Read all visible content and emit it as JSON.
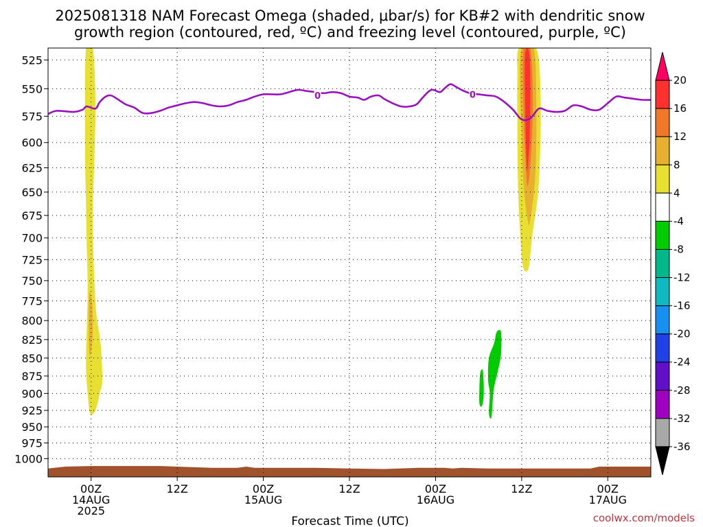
{
  "chart_data": {
    "type": "contour",
    "title_lines": [
      "2025081318 NAM Forecast Omega (shaded, μbar/s) for KB#2 with dendritic snow",
      "growth region (contoured, red, ºC) and freezing level (contoured, purple, ºC)"
    ],
    "xlabel": "Forecast Time (UTC)",
    "credit": "coolwx.com/models",
    "x_range_hours": [
      -5,
      65
    ],
    "x_ticks": [
      {
        "hour": 0,
        "lines": [
          "00Z",
          "14AUG",
          "2025"
        ]
      },
      {
        "hour": 10,
        "lines": [
          "12Z"
        ]
      },
      {
        "hour": 20,
        "lines": [
          "00Z",
          "15AUG"
        ]
      },
      {
        "hour": 30,
        "lines": [
          "12Z"
        ]
      },
      {
        "hour": 40,
        "lines": [
          "00Z",
          "16AUG"
        ]
      },
      {
        "hour": 50,
        "lines": [
          "12Z"
        ]
      },
      {
        "hour": 60,
        "lines": [
          "00Z",
          "17AUG"
        ]
      }
    ],
    "y_range_hpa": [
      1030,
      515
    ],
    "y_ticks": [
      525,
      550,
      575,
      600,
      625,
      650,
      675,
      700,
      725,
      750,
      775,
      800,
      825,
      850,
      875,
      900,
      925,
      950,
      975,
      1000
    ],
    "grid": true,
    "colorbar": {
      "labels": [
        20,
        16,
        12,
        8,
        4,
        -4,
        -8,
        -12,
        -16,
        -20,
        -24,
        -28,
        -32,
        -36
      ],
      "colors": [
        "#ff0060",
        "#ff3030",
        "#f07828",
        "#e8b030",
        "#e8e030",
        "#ffffff",
        "#00cc00",
        "#00b888",
        "#10b8c0",
        "#1890f0",
        "#2040e8",
        "#6010c8",
        "#a000c0",
        "#a8a8a8",
        "#000000"
      ]
    },
    "freezing_level": {
      "label": "0",
      "label_positions": [
        {
          "h": 26.3,
          "p": 556
        },
        {
          "h": 44.3,
          "p": 555
        }
      ],
      "points": [
        [
          -5,
          573
        ],
        [
          -4,
          570
        ],
        [
          -2,
          571
        ],
        [
          -1,
          569
        ],
        [
          -0.5,
          566
        ],
        [
          0.5,
          568
        ],
        [
          1,
          562
        ],
        [
          1.7,
          557
        ],
        [
          2.3,
          556
        ],
        [
          3,
          559
        ],
        [
          4,
          564
        ],
        [
          5,
          567
        ],
        [
          6,
          572
        ],
        [
          7,
          572
        ],
        [
          8,
          570
        ],
        [
          9,
          567
        ],
        [
          10,
          565
        ],
        [
          11,
          563
        ],
        [
          12,
          562
        ],
        [
          13,
          563
        ],
        [
          14,
          565
        ],
        [
          15,
          566
        ],
        [
          16,
          565
        ],
        [
          17,
          562
        ],
        [
          18,
          560
        ],
        [
          19,
          557
        ],
        [
          20,
          555
        ],
        [
          21,
          555
        ],
        [
          22,
          555
        ],
        [
          23,
          553
        ],
        [
          24,
          551
        ],
        [
          25,
          552
        ],
        [
          26,
          553
        ],
        [
          27,
          554
        ],
        [
          28,
          553
        ],
        [
          29,
          554
        ],
        [
          30,
          557
        ],
        [
          31,
          558
        ],
        [
          31.7,
          560
        ],
        [
          32.5,
          557
        ],
        [
          33.4,
          556
        ],
        [
          34,
          559
        ],
        [
          35,
          563
        ],
        [
          36,
          566
        ],
        [
          37,
          566
        ],
        [
          37.8,
          564
        ],
        [
          38.5,
          558
        ],
        [
          39.5,
          551
        ],
        [
          40.5,
          553
        ],
        [
          41,
          550
        ],
        [
          41.7,
          546
        ],
        [
          42.3,
          548
        ],
        [
          43,
          551
        ],
        [
          44,
          554
        ],
        [
          45,
          555
        ],
        [
          46,
          556
        ],
        [
          47,
          557
        ],
        [
          48,
          562
        ],
        [
          49,
          569
        ],
        [
          50,
          578
        ],
        [
          51,
          577
        ],
        [
          52,
          568
        ],
        [
          53,
          570
        ],
        [
          54,
          571
        ],
        [
          55,
          570
        ],
        [
          56,
          565
        ],
        [
          57,
          566
        ],
        [
          58,
          569
        ],
        [
          59,
          569
        ],
        [
          60,
          563
        ],
        [
          61,
          557
        ],
        [
          62,
          558
        ],
        [
          63,
          559
        ],
        [
          64,
          560
        ],
        [
          65,
          560
        ]
      ]
    },
    "shaded_features": [
      {
        "level": 4,
        "color": "#e8e030",
        "outline": [
          [
            -0.6,
            515
          ],
          [
            0.2,
            515
          ],
          [
            0.5,
            560
          ],
          [
            0.4,
            610
          ],
          [
            0.2,
            670
          ],
          [
            0.3,
            730
          ],
          [
            0.6,
            790
          ],
          [
            1.1,
            830
          ],
          [
            1.3,
            880
          ],
          [
            1.0,
            900
          ],
          [
            0.5,
            925
          ],
          [
            -0.1,
            930
          ],
          [
            -0.4,
            900
          ],
          [
            -0.6,
            860
          ],
          [
            -0.5,
            810
          ],
          [
            -0.4,
            760
          ],
          [
            -0.5,
            710
          ],
          [
            -0.6,
            660
          ],
          [
            -0.7,
            600
          ]
        ]
      },
      {
        "level": 8,
        "color": "#e8b030",
        "outline": [
          [
            -0.2,
            765
          ],
          [
            0.1,
            775
          ],
          [
            0.2,
            805
          ],
          [
            0.1,
            835
          ],
          [
            -0.2,
            845
          ],
          [
            -0.3,
            805
          ]
        ]
      },
      {
        "level": 4,
        "color": "#e8e030",
        "outline": [
          [
            49.7,
            515
          ],
          [
            51.7,
            515
          ],
          [
            52.2,
            560
          ],
          [
            52.0,
            640
          ],
          [
            51.2,
            700
          ],
          [
            50.8,
            735
          ],
          [
            50.2,
            735
          ],
          [
            49.9,
            705
          ],
          [
            49.6,
            650
          ],
          [
            49.5,
            580
          ],
          [
            49.5,
            540
          ]
        ]
      },
      {
        "level": 8,
        "color": "#e8b030",
        "outline": [
          [
            50.0,
            515
          ],
          [
            51.4,
            515
          ],
          [
            51.7,
            560
          ],
          [
            51.6,
            630
          ],
          [
            51.0,
            680
          ],
          [
            50.7,
            680
          ],
          [
            50.2,
            640
          ],
          [
            50.0,
            590
          ],
          [
            49.8,
            545
          ]
        ]
      },
      {
        "level": 12,
        "color": "#f07828",
        "outline": [
          [
            50.2,
            515
          ],
          [
            51.0,
            515
          ],
          [
            51.3,
            560
          ],
          [
            51.1,
            610
          ],
          [
            50.8,
            640
          ],
          [
            50.6,
            640
          ],
          [
            50.4,
            610
          ],
          [
            50.2,
            565
          ]
        ]
      },
      {
        "level": 16,
        "color": "#ff3030",
        "outline": [
          [
            50.4,
            520
          ],
          [
            50.9,
            520
          ],
          [
            51.0,
            560
          ],
          [
            50.9,
            600
          ],
          [
            50.7,
            625
          ],
          [
            50.6,
            625
          ],
          [
            50.5,
            600
          ],
          [
            50.4,
            560
          ]
        ]
      },
      {
        "level": -4,
        "color": "#00cc00",
        "outline": [
          [
            45.2,
            870
          ],
          [
            45.5,
            868
          ],
          [
            45.6,
            900
          ],
          [
            45.4,
            918
          ],
          [
            45.1,
            915
          ],
          [
            45.1,
            890
          ]
        ]
      },
      {
        "level": -4,
        "color": "#00cc00",
        "outline": [
          [
            46.2,
            850
          ],
          [
            46.8,
            830
          ],
          [
            47.1,
            815
          ],
          [
            47.6,
            815
          ],
          [
            47.6,
            845
          ],
          [
            47.2,
            870
          ],
          [
            46.9,
            885
          ],
          [
            46.7,
            900
          ],
          [
            46.5,
            935
          ],
          [
            46.2,
            930
          ],
          [
            46.3,
            900
          ],
          [
            46.1,
            880
          ]
        ]
      }
    ],
    "terrain": {
      "color": "#a0522d",
      "top_points": [
        [
          -5,
          1016
        ],
        [
          -3,
          1013
        ],
        [
          0,
          1012
        ],
        [
          4,
          1012
        ],
        [
          8,
          1012
        ],
        [
          14,
          1015
        ],
        [
          17,
          1015
        ],
        [
          18,
          1013
        ],
        [
          19,
          1015
        ],
        [
          22,
          1015
        ],
        [
          26,
          1015
        ],
        [
          30,
          1016
        ],
        [
          34,
          1017
        ],
        [
          38,
          1015
        ],
        [
          41,
          1015
        ],
        [
          42,
          1016
        ],
        [
          43,
          1015
        ],
        [
          46,
          1016
        ],
        [
          50,
          1016
        ],
        [
          54,
          1016
        ],
        [
          58,
          1016
        ],
        [
          59,
          1013
        ],
        [
          62,
          1013
        ],
        [
          65,
          1013
        ]
      ]
    }
  }
}
